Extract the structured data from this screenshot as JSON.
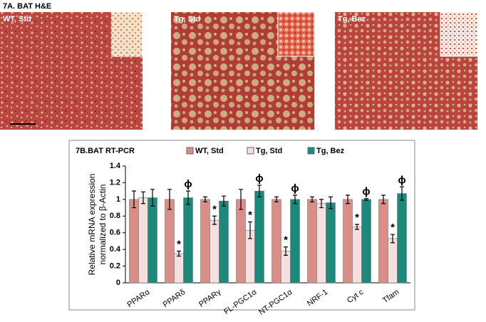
{
  "panel_a": {
    "title": "7A. BAT H&E",
    "images": [
      {
        "label": "WT, Std"
      },
      {
        "label": "Tg, Std"
      },
      {
        "label": "Tg, Bez"
      }
    ]
  },
  "chart_data": {
    "type": "bar",
    "title": "7B.BAT RT-PCR",
    "ylabel": [
      "Relative mRNA expression",
      "normalized to β-Actin"
    ],
    "categories": [
      "PPARα",
      "PPARδ",
      "PPARγ",
      "FL-PGC1α",
      "NT-PGC1α",
      "NRF-1",
      "Cyt c",
      "Tfam"
    ],
    "series": [
      {
        "name": "WT, Std",
        "color": "#d98f88",
        "values": [
          1.0,
          1.0,
          1.0,
          1.0,
          1.0,
          1.0,
          1.0,
          1.0
        ],
        "errors": [
          0.1,
          0.12,
          0.03,
          0.12,
          0.03,
          0.03,
          0.05,
          0.05
        ],
        "marks": [
          null,
          null,
          null,
          null,
          null,
          null,
          null,
          null
        ]
      },
      {
        "name": "Tg, Std",
        "color": "#f6dfdf",
        "values": [
          1.02,
          0.35,
          0.75,
          0.63,
          0.38,
          0.95,
          0.67,
          0.53
        ],
        "errors": [
          0.07,
          0.03,
          0.05,
          0.1,
          0.05,
          0.05,
          0.03,
          0.05
        ],
        "marks": [
          null,
          "*",
          "*",
          "*",
          "*",
          null,
          "*",
          "*"
        ]
      },
      {
        "name": "Tg, Bez",
        "color": "#1b8a7b",
        "values": [
          1.02,
          1.02,
          0.98,
          1.1,
          1.0,
          0.96,
          1.0,
          1.07
        ],
        "errors": [
          0.1,
          0.08,
          0.06,
          0.07,
          0.05,
          0.07,
          0.01,
          0.08
        ],
        "marks": [
          null,
          "ɸ",
          null,
          "ɸ",
          "ɸ",
          null,
          "ɸ",
          "ɸ"
        ]
      }
    ],
    "ylim": [
      0,
      1.4
    ],
    "yticks": [
      0,
      0.2,
      0.4,
      0.6,
      0.8,
      1,
      1.2,
      1.4
    ]
  }
}
